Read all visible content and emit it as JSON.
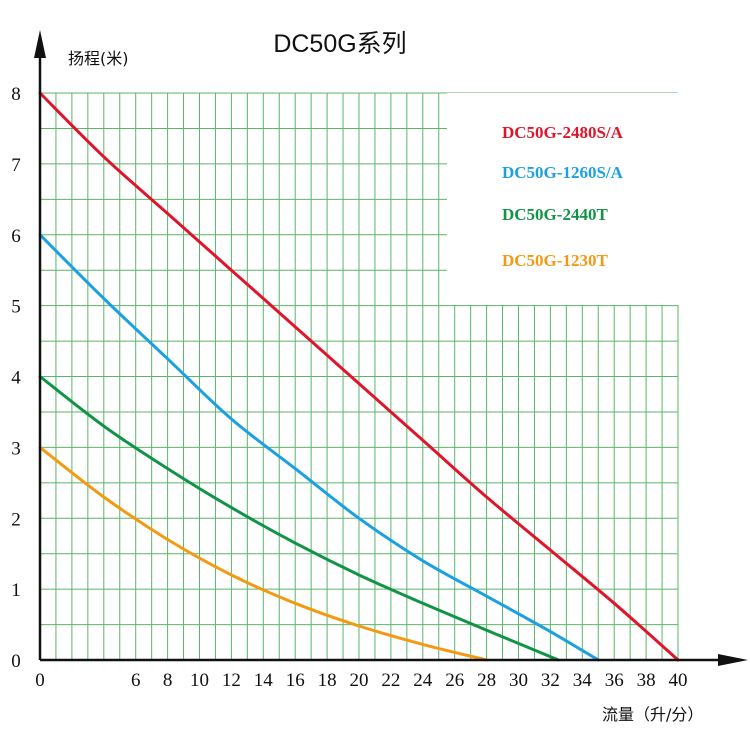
{
  "chart_data": {
    "type": "line",
    "title": "DC50G系列",
    "ylabel": "扬程(米)",
    "xlabel": "流量（升/分）",
    "xlim": [
      0,
      40
    ],
    "ylim": [
      0,
      8
    ],
    "x_ticks": [
      "0",
      "6",
      "8",
      "10",
      "12",
      "14",
      "16",
      "18",
      "20",
      "22",
      "24",
      "26",
      "28",
      "30",
      "32",
      "34",
      "36",
      "38",
      "40"
    ],
    "y_ticks": [
      "0",
      "1",
      "2",
      "3",
      "4",
      "5",
      "6",
      "7",
      "8"
    ],
    "grid": true,
    "grid_color": "#5bb56a",
    "legend_position": "top-right",
    "series": [
      {
        "name": "DC50G-2480S/A",
        "color": "#e0152b",
        "x": [
          0,
          4,
          8,
          12,
          16,
          20,
          24,
          28,
          32,
          36,
          40
        ],
        "y": [
          8,
          7.1,
          6.3,
          5.5,
          4.7,
          3.9,
          3.1,
          2.3,
          1.55,
          0.8,
          0
        ]
      },
      {
        "name": "DC50G-1260S/A",
        "color": "#1ba1e2",
        "x": [
          0,
          4,
          8,
          12,
          16,
          20,
          24,
          28,
          32,
          35
        ],
        "y": [
          6,
          5.1,
          4.25,
          3.4,
          2.7,
          2.0,
          1.4,
          0.9,
          0.4,
          0
        ]
      },
      {
        "name": "DC50G-2440T",
        "color": "#119447",
        "x": [
          0,
          4,
          8,
          12,
          16,
          20,
          24,
          28,
          32.5
        ],
        "y": [
          4,
          3.3,
          2.7,
          2.15,
          1.65,
          1.2,
          0.8,
          0.42,
          0
        ]
      },
      {
        "name": "DC50G-1230T",
        "color": "#f39a12",
        "x": [
          0,
          4,
          8,
          12,
          16,
          20,
          24,
          28
        ],
        "y": [
          3,
          2.3,
          1.7,
          1.2,
          0.8,
          0.48,
          0.22,
          0
        ]
      }
    ]
  }
}
